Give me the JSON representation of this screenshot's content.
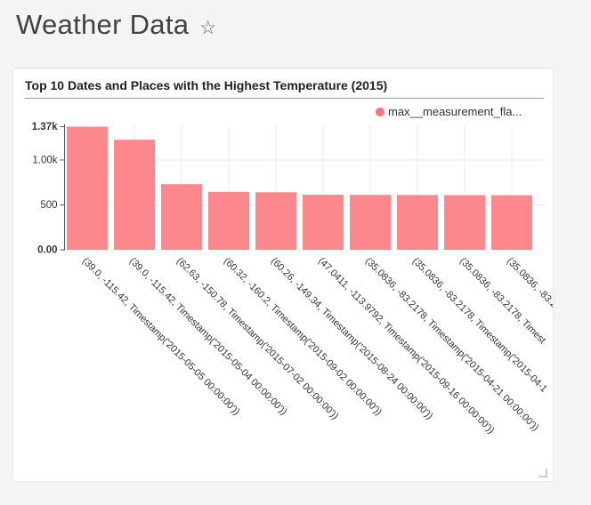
{
  "header": {
    "title": "Weather Data",
    "favorite_icon": "☆"
  },
  "panel": {
    "title": "Top 10 Dates and Places with the Highest Temperature (2015)",
    "legend": {
      "label": "max__measurement_fla...",
      "dot_color": "#f9737e"
    }
  },
  "chart_data": {
    "type": "bar",
    "title": "Top 10 Dates and Places with the Highest Temperature (2015)",
    "legend_entries": [
      "max__measurement_fla..."
    ],
    "legend_position": "top-right",
    "bar_color": "#fc878c",
    "grid": true,
    "xlabel": "",
    "ylabel": "",
    "x_tick_rotation_deg": 45,
    "ylim": [
      0,
      1370
    ],
    "yticks": [
      {
        "value": 0,
        "label": "0.00",
        "bold": true
      },
      {
        "value": 500,
        "label": "500",
        "gridline": true
      },
      {
        "value": 1000,
        "label": "1.00k",
        "gridline": true
      },
      {
        "value": 1370,
        "label": "1.37k",
        "bold": true
      }
    ],
    "categories": [
      "(39.0, -115.42, Timestamp('2015-05-05 00:00:00'))",
      "(39.0, -115.42, Timestamp('2015-05-04 00:00:00'))",
      "(62.63, -150.78, Timestamp('2015-07-02 00:00:00'))",
      "(60.32, -160.2, Timestamp('2015-09-02 00:00:00'))",
      "(60.26, -149.34, Timestamp('2015-08-24 00:00:00'))",
      "(47.0411, -113.9792, Timestamp('2015-09-16 00:00:00'))",
      "(35.0836, -83.2178, Timestamp('2015-04-21 00:00:00'))",
      "(35.0836, -83.2178, Timestamp('2015-04-1",
      "(35.0836, -83.2178, Timest",
      "(35.0836, -83.2"
    ],
    "values": [
      1370,
      1225,
      730,
      645,
      640,
      613,
      611,
      610,
      609,
      608
    ]
  }
}
